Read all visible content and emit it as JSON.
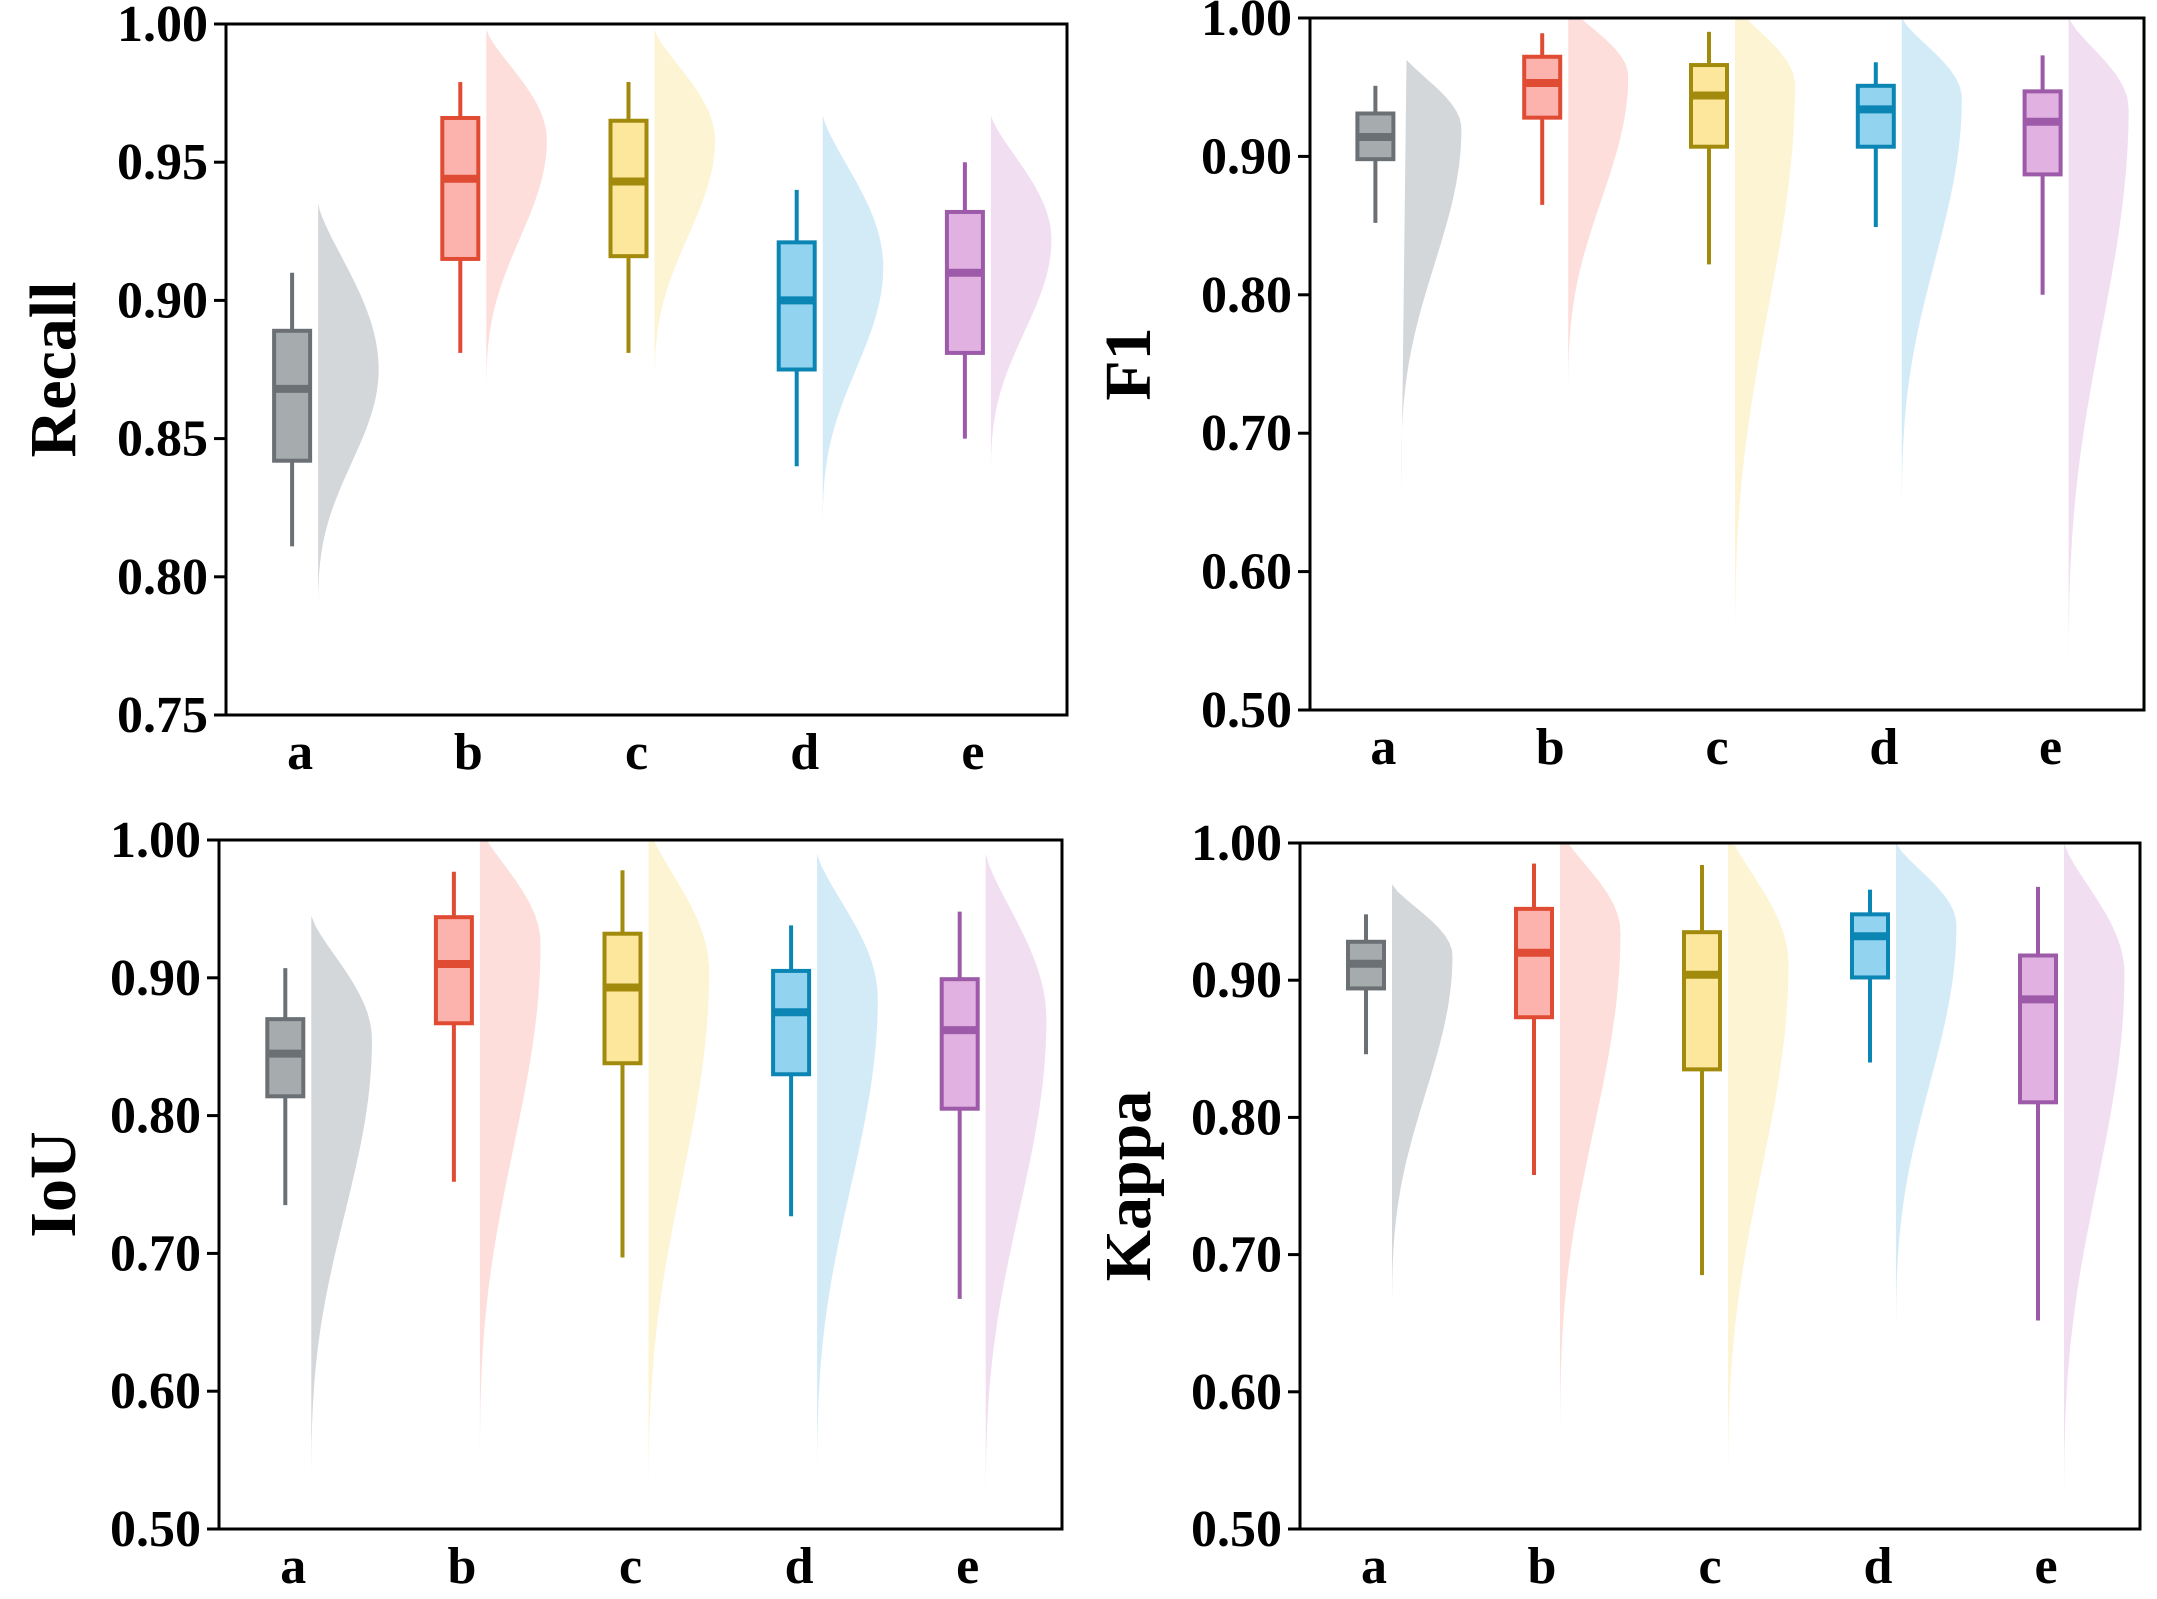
{
  "chart_data": [
    {
      "type": "raincloud",
      "ylabel": "Recall",
      "categories": [
        "a",
        "b",
        "c",
        "d",
        "e"
      ],
      "ylim": [
        0.75,
        1.0
      ],
      "yticks": [
        0.75,
        0.8,
        0.85,
        0.9,
        0.95,
        1.0
      ],
      "yticklabels": [
        "0.75",
        "0.80",
        "0.85",
        "0.90",
        "0.95",
        "1.00"
      ],
      "series": [
        {
          "name": "a",
          "color": "#6b7074",
          "fill": "#a6abae",
          "cloud": "#ced3d6",
          "min": 0.811,
          "q1": 0.842,
          "median": 0.868,
          "q3": 0.889,
          "max": 0.91,
          "dist_lo": 0.785,
          "dist_hi": 0.935,
          "mode": 0.875
        },
        {
          "name": "b",
          "color": "#e04c33",
          "fill": "#fdb3ad",
          "cloud": "#fddad7",
          "min": 0.881,
          "q1": 0.915,
          "median": 0.944,
          "q3": 0.966,
          "max": 0.979,
          "dist_lo": 0.863,
          "dist_hi": 0.998,
          "mode": 0.958
        },
        {
          "name": "c",
          "color": "#a28a0c",
          "fill": "#fde79c",
          "cloud": "#fdf3cf",
          "min": 0.881,
          "q1": 0.916,
          "median": 0.943,
          "q3": 0.965,
          "max": 0.979,
          "dist_lo": 0.865,
          "dist_hi": 0.998,
          "mode": 0.958
        },
        {
          "name": "d",
          "color": "#0b85b3",
          "fill": "#92d4f0",
          "cloud": "#cde9f6",
          "min": 0.84,
          "q1": 0.875,
          "median": 0.9,
          "q3": 0.921,
          "max": 0.94,
          "dist_lo": 0.814,
          "dist_hi": 0.967,
          "mode": 0.912
        },
        {
          "name": "e",
          "color": "#9c5aa8",
          "fill": "#e1b2e1",
          "cloud": "#efdaef",
          "min": 0.85,
          "q1": 0.881,
          "median": 0.91,
          "q3": 0.932,
          "max": 0.95,
          "dist_lo": 0.833,
          "dist_hi": 0.967,
          "mode": 0.922
        }
      ]
    },
    {
      "type": "raincloud",
      "ylabel": "F1",
      "categories": [
        "a",
        "b",
        "c",
        "d",
        "e"
      ],
      "ylim": [
        0.5,
        1.0
      ],
      "yticks": [
        0.5,
        0.6,
        0.7,
        0.8,
        0.9,
        1.0
      ],
      "yticklabels": [
        "0.50",
        "0.60",
        "0.70",
        "0.80",
        "0.90",
        "1.00"
      ],
      "series": [
        {
          "name": "a",
          "color": "#6b7074",
          "fill": "#a6abae",
          "cloud": "#ced3d6",
          "min": 0.852,
          "q1": 0.898,
          "median": 0.914,
          "q3": 0.931,
          "max": 0.951,
          "dist_lo": 0.66,
          "dist_hi": 0.975,
          "mode": 0.92
        },
        {
          "name": "b",
          "color": "#e04c33",
          "fill": "#fdb3ad",
          "cloud": "#fddad7",
          "min": 0.865,
          "q1": 0.928,
          "median": 0.953,
          "q3": 0.972,
          "max": 0.989,
          "dist_lo": 0.72,
          "dist_hi": 1.01,
          "mode": 0.958
        },
        {
          "name": "c",
          "color": "#a28a0c",
          "fill": "#fde79c",
          "cloud": "#fdf3cf",
          "min": 0.822,
          "q1": 0.907,
          "median": 0.944,
          "q3": 0.966,
          "max": 0.99,
          "dist_lo": 0.52,
          "dist_hi": 1.01,
          "mode": 0.952
        },
        {
          "name": "d",
          "color": "#0b85b3",
          "fill": "#92d4f0",
          "cloud": "#cde9f6",
          "min": 0.849,
          "q1": 0.907,
          "median": 0.934,
          "q3": 0.951,
          "max": 0.968,
          "dist_lo": 0.63,
          "dist_hi": 1.0,
          "mode": 0.942
        },
        {
          "name": "e",
          "color": "#9c5aa8",
          "fill": "#e1b2e1",
          "cloud": "#efdaef",
          "min": 0.8,
          "q1": 0.887,
          "median": 0.925,
          "q3": 0.947,
          "max": 0.973,
          "dist_lo": 0.51,
          "dist_hi": 1.0,
          "mode": 0.935
        }
      ]
    },
    {
      "type": "raincloud",
      "ylabel": "IoU",
      "categories": [
        "a",
        "b",
        "c",
        "d",
        "e"
      ],
      "ylim": [
        0.5,
        1.0
      ],
      "yticks": [
        0.5,
        0.6,
        0.7,
        0.8,
        0.9,
        1.0
      ],
      "yticklabels": [
        "0.50",
        "0.60",
        "0.70",
        "0.80",
        "0.90",
        "1.00"
      ],
      "series": [
        {
          "name": "a",
          "color": "#6b7074",
          "fill": "#a6abae",
          "cloud": "#ced3d6",
          "min": 0.735,
          "q1": 0.814,
          "median": 0.845,
          "q3": 0.87,
          "max": 0.907,
          "dist_lo": 0.52,
          "dist_hi": 0.945,
          "mode": 0.855
        },
        {
          "name": "b",
          "color": "#e04c33",
          "fill": "#fdb3ad",
          "cloud": "#fddad7",
          "min": 0.752,
          "q1": 0.867,
          "median": 0.91,
          "q3": 0.944,
          "max": 0.977,
          "dist_lo": 0.53,
          "dist_hi": 1.01,
          "mode": 0.925
        },
        {
          "name": "c",
          "color": "#a28a0c",
          "fill": "#fde79c",
          "cloud": "#fdf3cf",
          "min": 0.697,
          "q1": 0.838,
          "median": 0.893,
          "q3": 0.932,
          "max": 0.978,
          "dist_lo": 0.5,
          "dist_hi": 1.01,
          "mode": 0.905
        },
        {
          "name": "d",
          "color": "#0b85b3",
          "fill": "#92d4f0",
          "cloud": "#cde9f6",
          "min": 0.727,
          "q1": 0.83,
          "median": 0.875,
          "q3": 0.905,
          "max": 0.938,
          "dist_lo": 0.52,
          "dist_hi": 0.99,
          "mode": 0.885
        },
        {
          "name": "e",
          "color": "#9c5aa8",
          "fill": "#e1b2e1",
          "cloud": "#efdaef",
          "min": 0.667,
          "q1": 0.805,
          "median": 0.862,
          "q3": 0.899,
          "max": 0.948,
          "dist_lo": 0.5,
          "dist_hi": 0.99,
          "mode": 0.87
        }
      ]
    },
    {
      "type": "raincloud",
      "ylabel": "Kappa",
      "categories": [
        "a",
        "b",
        "c",
        "d",
        "e"
      ],
      "ylim": [
        0.5,
        1.0
      ],
      "yticks": [
        0.5,
        0.6,
        0.7,
        0.8,
        0.9,
        1.0
      ],
      "yticklabels": [
        "0.50",
        "0.60",
        "0.70",
        "0.80",
        "0.90",
        "1.00"
      ],
      "series": [
        {
          "name": "a",
          "color": "#6b7074",
          "fill": "#a6abae",
          "cloud": "#ced3d6",
          "min": 0.846,
          "q1": 0.894,
          "median": 0.912,
          "q3": 0.928,
          "max": 0.948,
          "dist_lo": 0.65,
          "dist_hi": 0.97,
          "mode": 0.918
        },
        {
          "name": "b",
          "color": "#e04c33",
          "fill": "#fdb3ad",
          "cloud": "#fddad7",
          "min": 0.758,
          "q1": 0.873,
          "median": 0.92,
          "q3": 0.952,
          "max": 0.985,
          "dist_lo": 0.55,
          "dist_hi": 1.01,
          "mode": 0.935
        },
        {
          "name": "c",
          "color": "#a28a0c",
          "fill": "#fde79c",
          "cloud": "#fdf3cf",
          "min": 0.685,
          "q1": 0.835,
          "median": 0.904,
          "q3": 0.935,
          "max": 0.984,
          "dist_lo": 0.51,
          "dist_hi": 1.01,
          "mode": 0.912
        },
        {
          "name": "d",
          "color": "#0b85b3",
          "fill": "#92d4f0",
          "cloud": "#cde9f6",
          "min": 0.84,
          "q1": 0.902,
          "median": 0.932,
          "q3": 0.948,
          "max": 0.966,
          "dist_lo": 0.63,
          "dist_hi": 1.0,
          "mode": 0.94
        },
        {
          "name": "e",
          "color": "#9c5aa8",
          "fill": "#e1b2e1",
          "cloud": "#efdaef",
          "min": 0.652,
          "q1": 0.811,
          "median": 0.886,
          "q3": 0.918,
          "max": 0.968,
          "dist_lo": 0.5,
          "dist_hi": 1.0,
          "mode": 0.905
        }
      ]
    }
  ]
}
